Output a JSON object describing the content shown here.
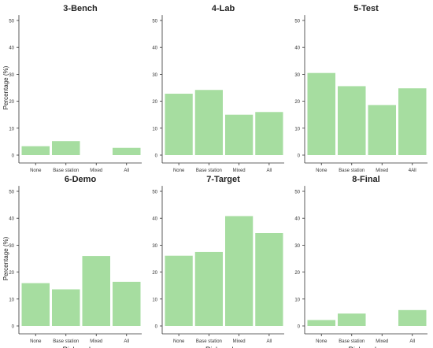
{
  "bar_color": "#a6dda0",
  "chart_data": [
    {
      "type": "bar",
      "title": "3-Bench",
      "categories": [
        "None",
        "Base station",
        "Mixed",
        "All"
      ],
      "values": [
        3.3,
        5.2,
        0,
        2.7
      ],
      "yticks": [
        "0",
        "10",
        "20",
        "30",
        "40",
        "50"
      ],
      "ylabel": "Percentage (%)",
      "xlabel": "",
      "ylim": [
        0,
        52
      ]
    },
    {
      "type": "bar",
      "title": "4-Lab",
      "categories": [
        "None",
        "Base station",
        "Mixed",
        "All"
      ],
      "values": [
        22.8,
        24.2,
        15.0,
        16.0
      ],
      "yticks": [
        "0",
        "10",
        "20",
        "30",
        "40",
        "50"
      ],
      "ylabel": "",
      "xlabel": "",
      "ylim": [
        0,
        52
      ]
    },
    {
      "type": "bar",
      "title": "5-Test",
      "categories": [
        "None",
        "Base station",
        "Mixed",
        "4All"
      ],
      "values": [
        30.5,
        25.6,
        18.6,
        24.8
      ],
      "yticks": [
        "0",
        "10",
        "20",
        "30",
        "40",
        "50"
      ],
      "ylabel": "",
      "xlabel": "",
      "ylim": [
        0,
        52
      ]
    },
    {
      "type": "bar",
      "title": "6-Demo",
      "categories": [
        "None",
        "Base station",
        "Mixed",
        "All"
      ],
      "values": [
        15.9,
        13.6,
        26.0,
        16.4
      ],
      "yticks": [
        "0",
        "10",
        "20",
        "30",
        "40",
        "50"
      ],
      "ylabel": "Percentage (%)",
      "xlabel": "Rich nodes",
      "ylim": [
        0,
        52
      ]
    },
    {
      "type": "bar",
      "title": "7-Target",
      "categories": [
        "None",
        "Base station",
        "Mixed",
        "All"
      ],
      "values": [
        26.1,
        27.5,
        40.8,
        34.5
      ],
      "yticks": [
        "0",
        "10",
        "20",
        "30",
        "40",
        "50"
      ],
      "ylabel": "",
      "xlabel": "Rich nodes",
      "ylim": [
        0,
        52
      ]
    },
    {
      "type": "bar",
      "title": "8-Final",
      "categories": [
        "None",
        "Base station",
        "Mixed",
        "All"
      ],
      "values": [
        2.2,
        4.6,
        0,
        5.9
      ],
      "yticks": [
        "0",
        "10",
        "20",
        "30",
        "40",
        "50"
      ],
      "ylabel": "",
      "xlabel": "Rich nodes",
      "ylim": [
        0,
        52
      ]
    }
  ]
}
